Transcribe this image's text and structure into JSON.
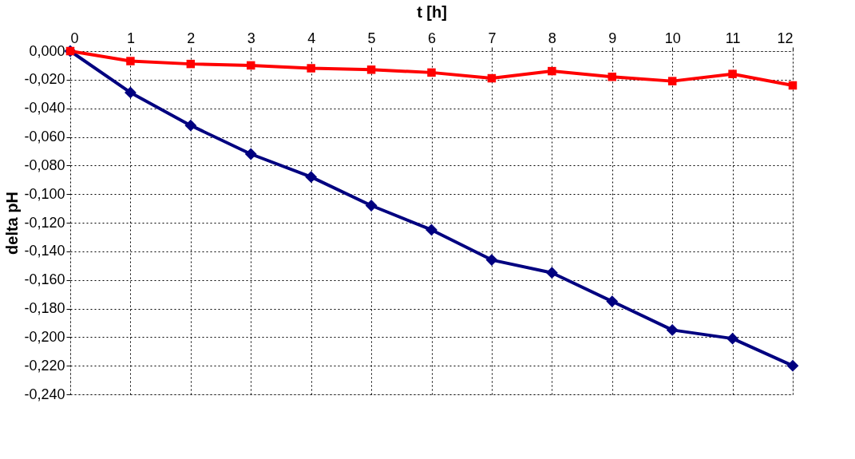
{
  "chart_data": {
    "type": "line",
    "xlabel": "t [h]",
    "ylabel": "delta pH",
    "x": [
      0,
      1,
      2,
      3,
      4,
      5,
      6,
      7,
      8,
      9,
      10,
      11,
      12
    ],
    "series": [
      {
        "color": "#000080",
        "marker": "diamond",
        "values": [
          0,
          -0.029,
          -0.052,
          -0.072,
          -0.088,
          -0.108,
          -0.125,
          -0.146,
          -0.155,
          -0.175,
          -0.195,
          -0.201,
          -0.22
        ]
      },
      {
        "color": "#ff0000",
        "marker": "square",
        "values": [
          0,
          -0.007,
          -0.009,
          -0.01,
          -0.012,
          -0.013,
          -0.015,
          -0.019,
          -0.014,
          -0.018,
          -0.021,
          -0.016,
          -0.024
        ]
      }
    ],
    "xlim": [
      0,
      12
    ],
    "xticks": [
      0,
      1,
      2,
      3,
      4,
      5,
      6,
      7,
      8,
      9,
      10,
      11,
      12
    ],
    "ylim": [
      -0.24,
      0
    ],
    "yticks": [
      {
        "value": 0,
        "label": "0,000"
      },
      {
        "value": -0.02,
        "label": "-0,020"
      },
      {
        "value": -0.04,
        "label": "-0,040"
      },
      {
        "value": -0.06,
        "label": "-0,060"
      },
      {
        "value": -0.08,
        "label": "-0,080"
      },
      {
        "value": -0.1,
        "label": "-0,100"
      },
      {
        "value": -0.12,
        "label": "-0,120"
      },
      {
        "value": -0.14,
        "label": "-0,140"
      },
      {
        "value": -0.16,
        "label": "-0,160"
      },
      {
        "value": -0.18,
        "label": "-0,180"
      },
      {
        "value": -0.2,
        "label": "-0,200"
      },
      {
        "value": -0.22,
        "label": "-0,220"
      },
      {
        "value": -0.24,
        "label": "-0,240"
      }
    ],
    "grid": true,
    "line_style": "solid"
  }
}
